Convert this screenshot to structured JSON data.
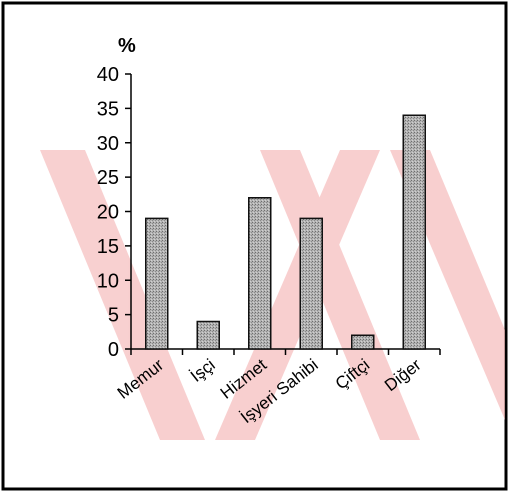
{
  "chart_data": {
    "type": "bar",
    "ylabel": "%",
    "categories": [
      "Memur",
      "İşçi",
      "Hizmet",
      "İşyeri Sahibi",
      "Çiftçi",
      "Diğer"
    ],
    "values": [
      19,
      4,
      22,
      19,
      2,
      34
    ],
    "ylim": [
      0,
      40
    ],
    "yticks": [
      "0",
      "5",
      "10",
      "15",
      "20",
      "25",
      "30",
      "35",
      "40"
    ],
    "grid": false,
    "legend": "none",
    "colors": {
      "bar_fill": "#a9a9a9",
      "bar_stroke": "#111111",
      "axis": "#000000",
      "border": "#000000",
      "watermark": "#f6c3c3"
    }
  }
}
